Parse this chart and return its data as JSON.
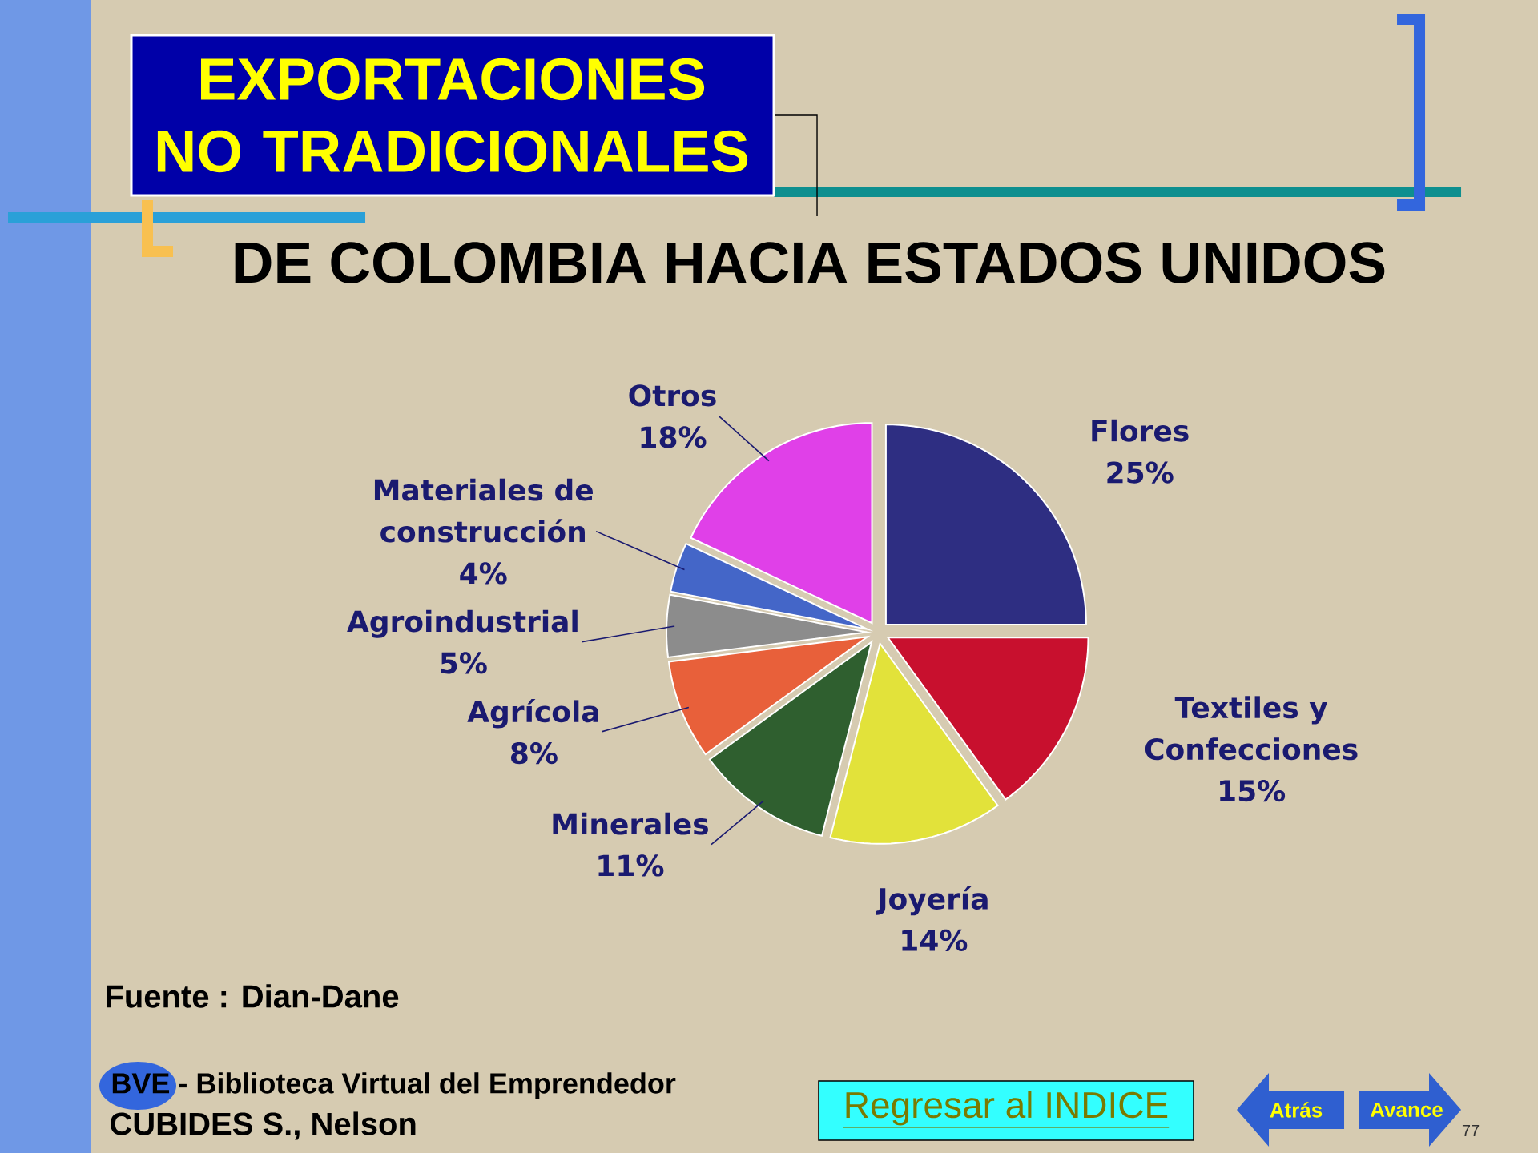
{
  "chart_data": {
    "type": "pie",
    "title": "EXPORTACIONES NO TRADICIONALES",
    "subtitle": "DE COLOMBIA HACIA ESTADOS UNIDOS",
    "categories": [
      "Flores",
      "Textiles y Confecciones",
      "Joyería",
      "Minerales",
      "Agrícola",
      "Agroindustrial",
      "Materiales de construcción",
      "Otros"
    ],
    "values": [
      25,
      15,
      14,
      11,
      8,
      5,
      4,
      18
    ],
    "value_labels": [
      "25%",
      "15%",
      "14%",
      "11%",
      "8%",
      "5%",
      "4%",
      "18%"
    ],
    "colors": [
      "#2e2e82",
      "#c8102e",
      "#e2e23a",
      "#2f5f2f",
      "#e8603a",
      "#8c8c8c",
      "#4466c8",
      "#e040e8"
    ],
    "annotations": [
      "Fuente : Dian-Dane",
      "BVE - Biblioteca Virtual del Emprendedor",
      "CUBIDES S., Nelson",
      "Regresar al INDICE",
      "Atrás",
      "Avance",
      "77"
    ]
  }
}
